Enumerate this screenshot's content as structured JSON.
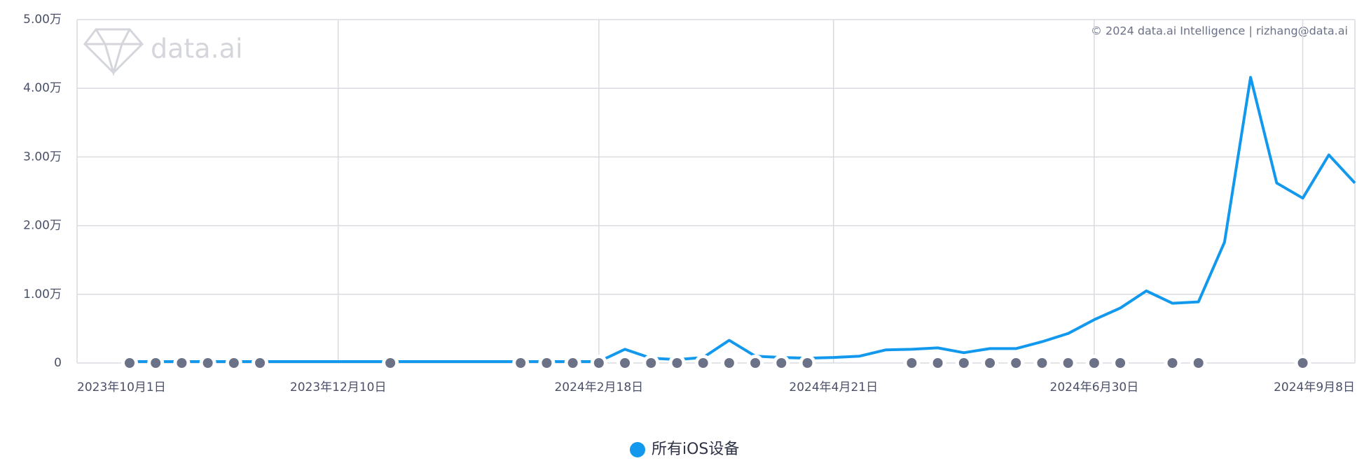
{
  "chart_data": {
    "type": "line",
    "watermark": "data.ai",
    "copyright": "© 2024 data.ai Intelligence | rizhang@data.ai",
    "categories": [
      "2023年10月1日",
      null,
      null,
      null,
      null,
      null,
      null,
      null,
      "2023年12月10日",
      null,
      null,
      null,
      null,
      null,
      null,
      null,
      null,
      null,
      "2024年2月18日",
      null,
      null,
      null,
      null,
      null,
      null,
      null,
      null,
      "2024年4月21日",
      null,
      null,
      null,
      null,
      null,
      null,
      null,
      null,
      null,
      "2024年6月30日",
      null,
      null,
      null,
      null,
      null,
      null,
      null,
      "2024年9月8日",
      null,
      null
    ],
    "series": [
      {
        "name": "所有iOS设备",
        "color": "#1299ee",
        "values": [
          0.02,
          0.02,
          0.02,
          0.02,
          0.02,
          0.02,
          0.02,
          0.02,
          0.02,
          0.02,
          0.02,
          0.02,
          0.02,
          0.02,
          0.02,
          0.02,
          0.02,
          0.02,
          0.02,
          0.2,
          0.07,
          0.05,
          0.08,
          0.33,
          0.1,
          0.08,
          0.07,
          0.08,
          0.1,
          0.19,
          0.2,
          0.22,
          0.15,
          0.21,
          0.21,
          0.31,
          0.43,
          0.63,
          0.8,
          1.05,
          0.87,
          0.89,
          1.76,
          4.16,
          2.62,
          2.4,
          3.03,
          2.62
        ]
      }
    ],
    "ylim": [
      0,
      5
    ],
    "yticks": [
      0,
      {
        "value": 1,
        "label": "1.00万"
      },
      {
        "value": 2,
        "label": "2.00万"
      },
      {
        "value": 3,
        "label": "3.00万"
      },
      {
        "value": 4,
        "label": "4.00万"
      },
      {
        "value": 5,
        "label": "5.00万"
      }
    ],
    "grid": true,
    "legend": "bottom"
  }
}
